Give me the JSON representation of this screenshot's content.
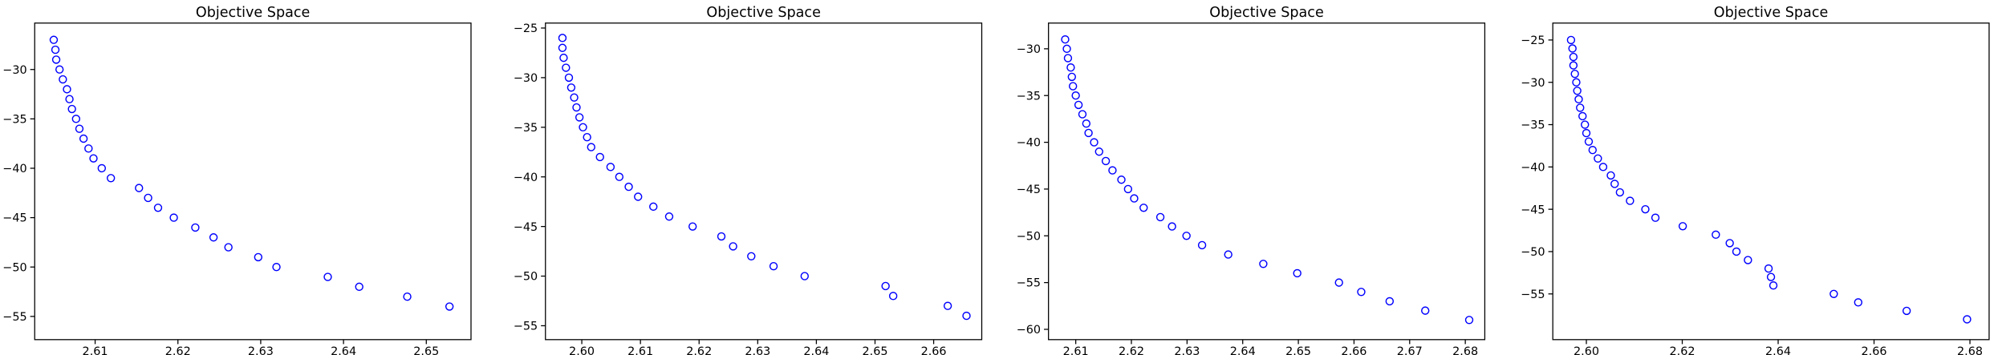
{
  "chart_data": [
    {
      "type": "scatter",
      "title": "Objective Space",
      "color": "blue",
      "x": [
        2.605,
        2.6052,
        2.6053,
        2.6057,
        2.6061,
        2.6066,
        2.6069,
        2.6072,
        2.6077,
        2.6081,
        2.6086,
        2.6092,
        2.6098,
        2.6108,
        2.6119,
        2.6153,
        2.6164,
        2.6176,
        2.6195,
        2.6221,
        2.6243,
        2.6261,
        2.6297,
        2.6319,
        2.6381,
        2.6419,
        2.6477,
        2.6528
      ],
      "y": [
        -27,
        -28,
        -29,
        -30,
        -31,
        -32,
        -33,
        -34,
        -35,
        -36,
        -37,
        -38,
        -39,
        -40,
        -41,
        -42,
        -43,
        -44,
        -45,
        -46,
        -47,
        -48,
        -49,
        -50,
        -51,
        -52,
        -53,
        -54
      ],
      "xlim": [
        2.6027,
        2.6554
      ],
      "ylim": [
        -57.35,
        -25.3
      ],
      "xticks": [
        2.61,
        2.62,
        2.63,
        2.64,
        2.65
      ],
      "yticks": [
        {
          "value": -30,
          "label": "−30"
        },
        {
          "value": -35,
          "label": "−35"
        },
        {
          "value": -40,
          "label": "−40"
        },
        {
          "value": -45,
          "label": "−45"
        },
        {
          "value": -50,
          "label": "−50"
        },
        {
          "value": -55,
          "label": "−55"
        }
      ]
    },
    {
      "type": "scatter",
      "title": "Objective Space",
      "color": "blue",
      "x": [
        2.5967,
        2.5967,
        2.5969,
        2.5973,
        2.5978,
        2.5982,
        2.5987,
        2.5991,
        2.5996,
        2.6002,
        2.6009,
        2.6016,
        2.6031,
        2.6049,
        2.6064,
        2.608,
        2.6096,
        2.6122,
        2.6149,
        2.6189,
        2.6238,
        2.6258,
        2.6289,
        2.6327,
        2.638,
        2.6518,
        2.6531,
        2.6624,
        2.6656
      ],
      "y": [
        -26,
        -27,
        -28,
        -29,
        -30,
        -31,
        -32,
        -33,
        -34,
        -35,
        -36,
        -37,
        -38,
        -39,
        -40,
        -41,
        -42,
        -43,
        -44,
        -45,
        -46,
        -47,
        -48,
        -49,
        -50,
        -51,
        -52,
        -53,
        -54
      ],
      "xlim": [
        2.5938,
        2.6682
      ],
      "ylim": [
        -56.4,
        -24.5
      ],
      "xticks": [
        {
          "value": 2.6,
          "label": "2.60"
        },
        2.61,
        2.62,
        2.63,
        2.64,
        2.65,
        2.66
      ],
      "yticks": [
        {
          "value": -25,
          "label": "−25"
        },
        {
          "value": -30,
          "label": "−30"
        },
        {
          "value": -35,
          "label": "−35"
        },
        {
          "value": -40,
          "label": "−40"
        },
        {
          "value": -45,
          "label": "−45"
        },
        {
          "value": -50,
          "label": "−50"
        },
        {
          "value": -55,
          "label": "−55"
        }
      ]
    },
    {
      "type": "scatter",
      "title": "Objective Space",
      "color": "blue",
      "x": [
        2.6081,
        2.6084,
        2.6086,
        2.6091,
        2.6093,
        2.6095,
        2.61,
        2.6105,
        2.6112,
        2.6119,
        2.6123,
        2.6133,
        2.6142,
        2.6154,
        2.6166,
        2.6182,
        2.6194,
        2.6205,
        2.6222,
        2.6252,
        2.6273,
        2.6299,
        2.6327,
        2.6374,
        2.6437,
        2.6498,
        2.6573,
        2.6613,
        2.6664,
        2.6728,
        2.6807
      ],
      "y": [
        -29,
        -30,
        -31,
        -32,
        -33,
        -34,
        -35,
        -36,
        -37,
        -38,
        -39,
        -40,
        -41,
        -42,
        -43,
        -44,
        -45,
        -46,
        -47,
        -48,
        -49,
        -50,
        -51,
        -52,
        -53,
        -54,
        -55,
        -56,
        -57,
        -58,
        -59
      ],
      "xlim": [
        2.6051,
        2.6835
      ],
      "ylim": [
        -61.1,
        -27.25
      ],
      "xticks": [
        2.61,
        2.62,
        2.63,
        2.64,
        2.65,
        2.66,
        2.67,
        2.68
      ],
      "yticks": [
        {
          "value": -30,
          "label": "−30"
        },
        {
          "value": -35,
          "label": "−35"
        },
        {
          "value": -40,
          "label": "−40"
        },
        {
          "value": -45,
          "label": "−45"
        },
        {
          "value": -50,
          "label": "−50"
        },
        {
          "value": -55,
          "label": "−55"
        },
        {
          "value": -60,
          "label": "−60"
        }
      ]
    },
    {
      "type": "scatter",
      "title": "Objective Space",
      "color": "blue",
      "x": [
        2.5968,
        2.5971,
        2.5973,
        2.5973,
        2.5976,
        2.5979,
        2.5981,
        2.5984,
        2.5987,
        2.5992,
        2.5997,
        2.6,
        2.6005,
        2.6013,
        2.6024,
        2.6035,
        2.6051,
        2.6059,
        2.607,
        2.6091,
        2.6123,
        2.6144,
        2.6201,
        2.627,
        2.6299,
        2.6313,
        2.6337,
        2.638,
        2.6385,
        2.639,
        2.6516,
        2.6567,
        2.6668,
        2.6794
      ],
      "y": [
        -25,
        -26,
        -27,
        -28,
        -29,
        -30,
        -31,
        -32,
        -33,
        -34,
        -35,
        -36,
        -37,
        -38,
        -39,
        -40,
        -41,
        -42,
        -43,
        -44,
        -45,
        -46,
        -47,
        -48,
        -49,
        -50,
        -51,
        -52,
        -53,
        -54,
        -55,
        -56,
        -57,
        -58
      ],
      "xlim": [
        2.593,
        2.684
      ],
      "ylim": [
        -60.4,
        -23
      ],
      "xticks": [
        {
          "value": 2.6,
          "label": "2.60"
        },
        2.62,
        2.64,
        2.66,
        2.68
      ],
      "yticks": [
        {
          "value": -25,
          "label": "−25"
        },
        {
          "value": -30,
          "label": "−30"
        },
        {
          "value": -35,
          "label": "−35"
        },
        {
          "value": -40,
          "label": "−40"
        },
        {
          "value": -45,
          "label": "−45"
        },
        {
          "value": -50,
          "label": "−50"
        },
        {
          "value": -55,
          "label": "−55"
        }
      ]
    }
  ]
}
